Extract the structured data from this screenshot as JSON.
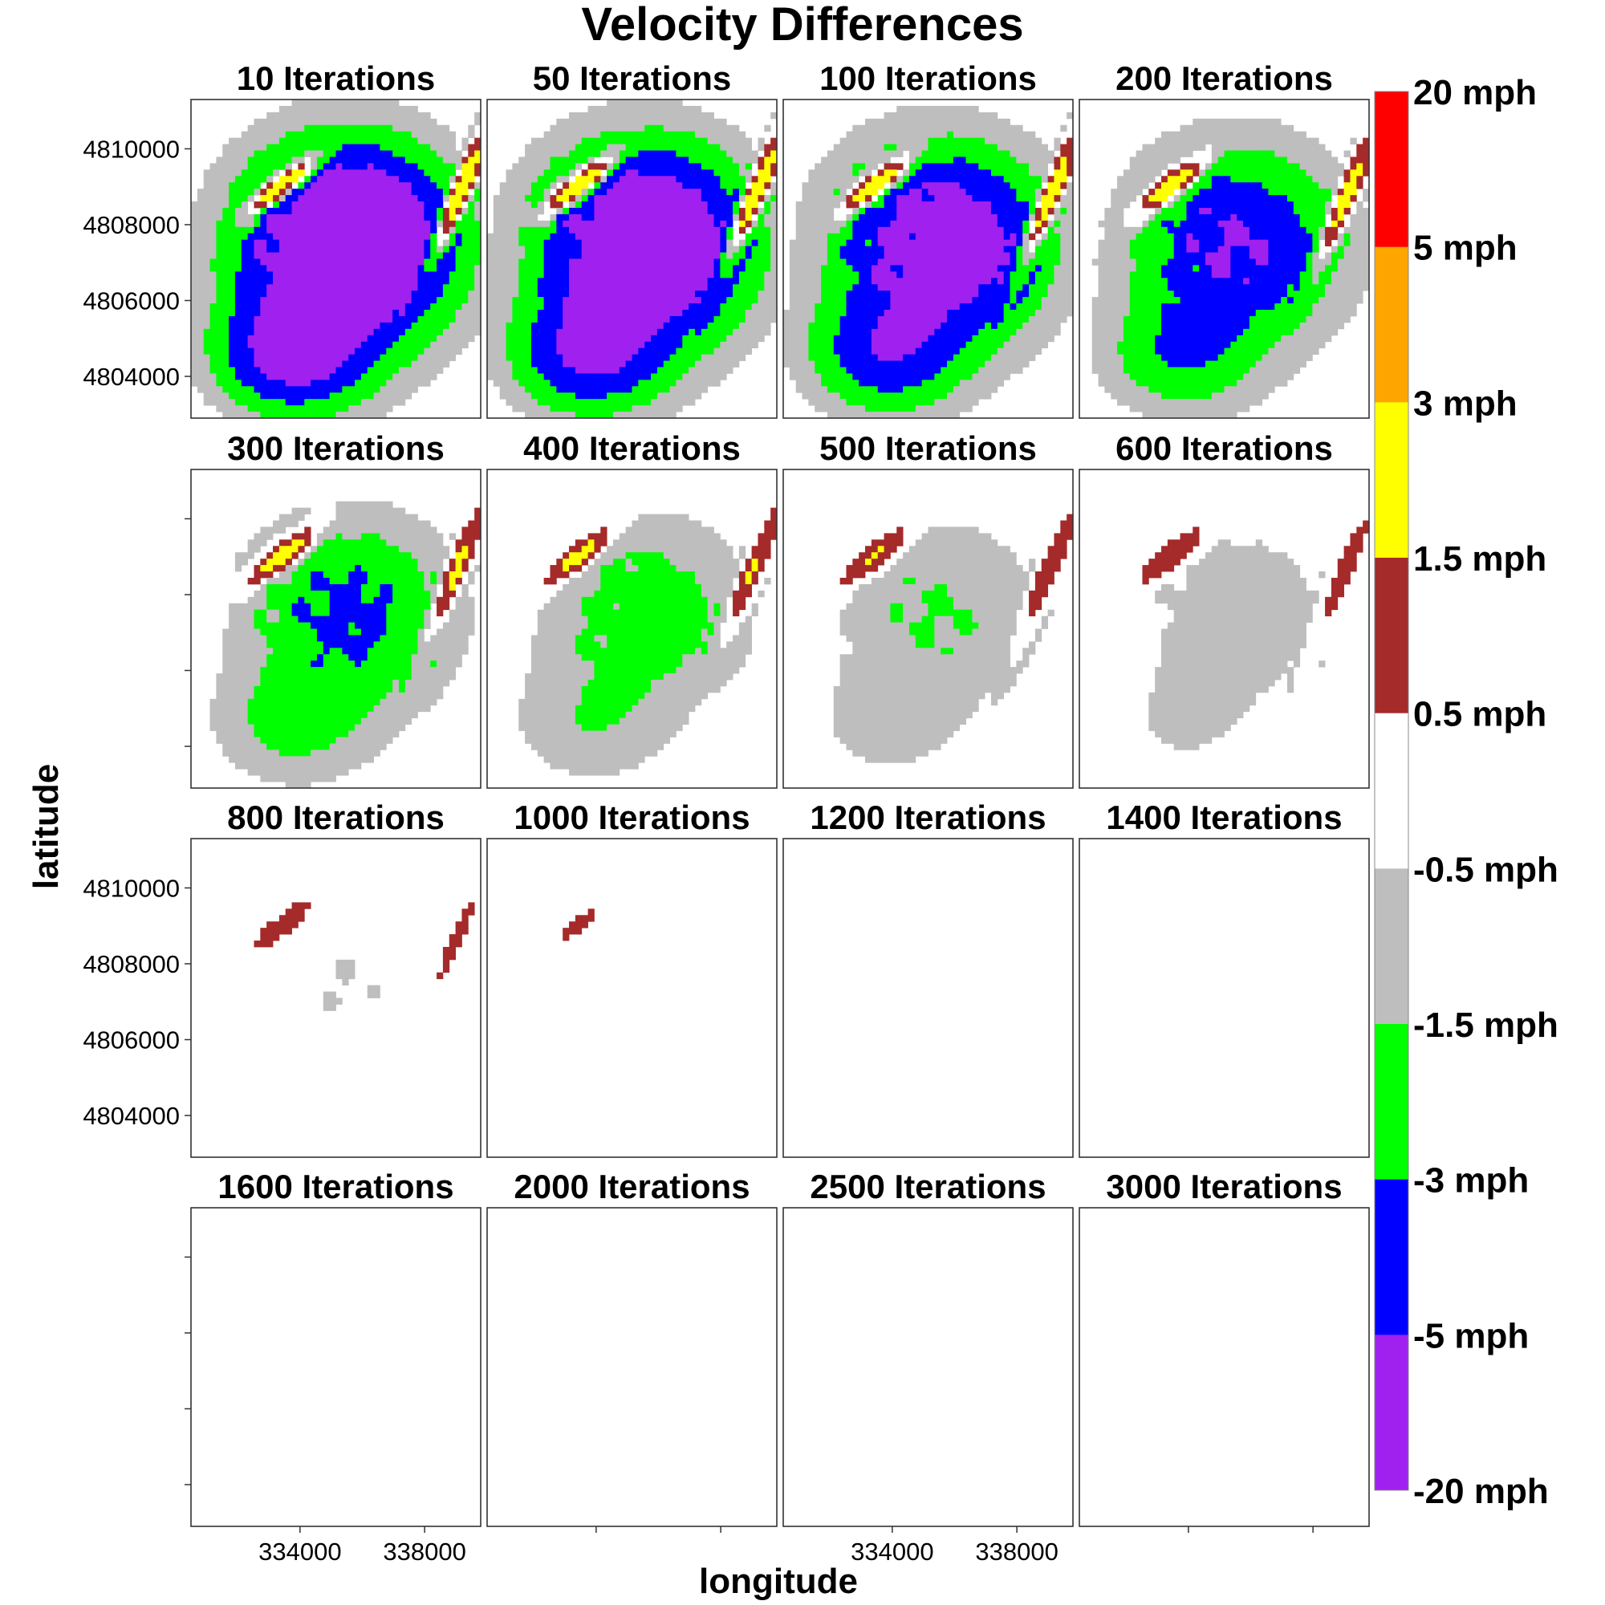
{
  "chart_data": {
    "type": "heatmap",
    "title": "Velocity Differences",
    "xlabel": "longitude",
    "ylabel": "latitude",
    "x_ticks": [
      334000,
      338000
    ],
    "y_ticks": [
      4804000,
      4806000,
      4808000,
      4810000
    ],
    "xlim": [
      330500,
      339800
    ],
    "ylim": [
      4802900,
      4811300
    ],
    "panels": [
      {
        "label": "10 Iterations",
        "iterations": 10
      },
      {
        "label": "50 Iterations",
        "iterations": 50
      },
      {
        "label": "100 Iterations",
        "iterations": 100
      },
      {
        "label": "200 Iterations",
        "iterations": 200
      },
      {
        "label": "300 Iterations",
        "iterations": 300
      },
      {
        "label": "400 Iterations",
        "iterations": 400
      },
      {
        "label": "500 Iterations",
        "iterations": 500
      },
      {
        "label": "600 Iterations",
        "iterations": 600
      },
      {
        "label": "800 Iterations",
        "iterations": 800
      },
      {
        "label": "1000 Iterations",
        "iterations": 1000
      },
      {
        "label": "1200 Iterations",
        "iterations": 1200
      },
      {
        "label": "1400 Iterations",
        "iterations": 1400
      },
      {
        "label": "1600 Iterations",
        "iterations": 1600
      },
      {
        "label": "2000 Iterations",
        "iterations": 2000
      },
      {
        "label": "2500 Iterations",
        "iterations": 2500
      },
      {
        "label": "3000 Iterations",
        "iterations": 3000
      }
    ],
    "legend": {
      "placement": "right",
      "labels": [
        "20 mph",
        "5 mph",
        "3 mph",
        "1.5 mph",
        "0.5 mph",
        "-0.5 mph",
        "-1.5 mph",
        "-3 mph",
        "-5 mph",
        "-20 mph"
      ],
      "bins": [
        {
          "from": 5,
          "to": 20,
          "color": "#ff0000"
        },
        {
          "from": 3,
          "to": 5,
          "color": "#ffa500"
        },
        {
          "from": 1.5,
          "to": 3,
          "color": "#ffff00"
        },
        {
          "from": 0.5,
          "to": 1.5,
          "color": "#a52a2a"
        },
        {
          "from": -0.5,
          "to": 0.5,
          "color": "#ffffff"
        },
        {
          "from": -1.5,
          "to": -0.5,
          "color": "#bebebe"
        },
        {
          "from": -3,
          "to": -1.5,
          "color": "#00ff00"
        },
        {
          "from": -5,
          "to": -3,
          "color": "#0000ff"
        },
        {
          "from": -20,
          "to": -5,
          "color": "#a020f0"
        }
      ]
    }
  }
}
